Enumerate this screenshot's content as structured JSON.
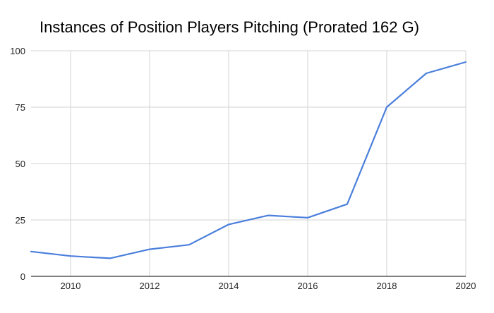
{
  "chart_data": {
    "type": "line",
    "title": "Instances of Position Players Pitching (Prorated 162 G)",
    "xlabel": "",
    "ylabel": "",
    "x": [
      2009,
      2010,
      2011,
      2012,
      2013,
      2014,
      2015,
      2016,
      2017,
      2018,
      2019,
      2020
    ],
    "series": [
      {
        "name": "Instances of Position Players Pitching (Prorated 162 G)",
        "color": "#4a7fdc",
        "values": [
          11,
          9,
          8,
          12,
          14,
          23,
          27,
          26,
          32,
          75,
          90,
          95
        ]
      }
    ],
    "xticks": [
      "2010",
      "2012",
      "2014",
      "2016",
      "2018",
      "2020"
    ],
    "yticks": [
      "0",
      "25",
      "50",
      "75",
      "100"
    ],
    "xlim": [
      2009,
      2020
    ],
    "ylim": [
      0,
      100
    ],
    "grid": true,
    "legend": "none"
  }
}
